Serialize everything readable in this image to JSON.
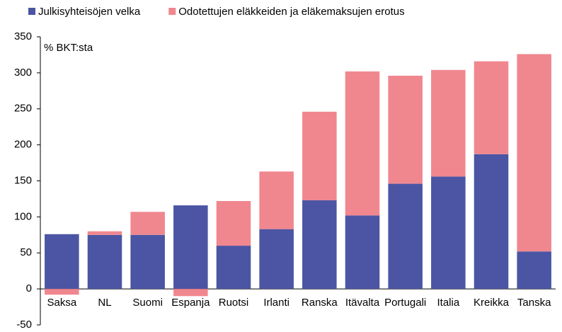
{
  "chart_data": {
    "type": "stacked_bar",
    "y_label": "% BKT:sta",
    "categories": [
      "Saksa",
      "NL",
      "Suomi",
      "Espanja",
      "Ruotsi",
      "Irlanti",
      "Ranska",
      "Itävalta",
      "Portugali",
      "Italia",
      "Kreikka",
      "Tanska"
    ],
    "series": [
      {
        "name": "Julkisyhteisöjen velka",
        "color": "#4b55a3",
        "values": [
          76,
          75,
          75,
          116,
          60,
          83,
          123,
          102,
          146,
          156,
          187,
          52
        ]
      },
      {
        "name": "Odotettujen eläkkeiden ja eläkemaksujen erotus",
        "color": "#f0878f",
        "values": [
          -8,
          5,
          32,
          -10,
          62,
          80,
          123,
          200,
          150,
          148,
          129,
          274
        ]
      }
    ],
    "ylim": [
      -50,
      350
    ],
    "yticks": [
      -50,
      0,
      50,
      100,
      150,
      200,
      250,
      300,
      350
    ],
    "grid": false,
    "legend": "top"
  }
}
